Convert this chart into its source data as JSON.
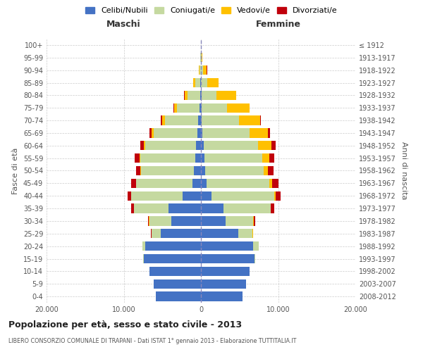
{
  "age_groups": [
    "0-4",
    "5-9",
    "10-14",
    "15-19",
    "20-24",
    "25-29",
    "30-34",
    "35-39",
    "40-44",
    "45-49",
    "50-54",
    "55-59",
    "60-64",
    "65-69",
    "70-74",
    "75-79",
    "80-84",
    "85-89",
    "90-94",
    "95-99",
    "100+"
  ],
  "birth_years": [
    "2008-2012",
    "2003-2007",
    "1998-2002",
    "1993-1997",
    "1988-1992",
    "1983-1987",
    "1978-1982",
    "1973-1977",
    "1968-1972",
    "1963-1967",
    "1958-1962",
    "1953-1957",
    "1948-1952",
    "1943-1947",
    "1938-1942",
    "1933-1937",
    "1928-1932",
    "1923-1927",
    "1918-1922",
    "1913-1917",
    "≤ 1912"
  ],
  "males": {
    "celibi": [
      5800,
      6100,
      6700,
      7400,
      7200,
      5200,
      3800,
      4200,
      2400,
      1100,
      900,
      750,
      600,
      500,
      350,
      220,
      120,
      60,
      30,
      20,
      10
    ],
    "coniugati": [
      2,
      3,
      10,
      60,
      380,
      1200,
      2900,
      4500,
      6600,
      7300,
      6900,
      7100,
      6600,
      5600,
      4300,
      2900,
      1600,
      650,
      180,
      40,
      15
    ],
    "vedovi": [
      0,
      0,
      1,
      2,
      5,
      8,
      15,
      20,
      25,
      40,
      70,
      120,
      200,
      270,
      330,
      380,
      420,
      310,
      100,
      20,
      5
    ],
    "divorziati": [
      0,
      0,
      1,
      2,
      10,
      40,
      120,
      280,
      480,
      580,
      500,
      580,
      480,
      330,
      200,
      80,
      30,
      15,
      5,
      3,
      1
    ]
  },
  "females": {
    "nubili": [
      5400,
      5800,
      6300,
      6900,
      6800,
      4800,
      3200,
      2900,
      1400,
      750,
      550,
      420,
      330,
      200,
      130,
      80,
      50,
      30,
      15,
      10,
      8
    ],
    "coniugate": [
      2,
      3,
      10,
      100,
      650,
      1900,
      3600,
      6100,
      8100,
      8100,
      7600,
      7500,
      7100,
      6100,
      4800,
      3300,
      2000,
      800,
      280,
      70,
      15
    ],
    "vedove": [
      0,
      0,
      1,
      2,
      8,
      15,
      40,
      80,
      180,
      360,
      560,
      900,
      1700,
      2400,
      2700,
      2900,
      2500,
      1450,
      480,
      90,
      10
    ],
    "divorziate": [
      0,
      0,
      1,
      2,
      15,
      60,
      180,
      380,
      680,
      800,
      700,
      680,
      580,
      230,
      130,
      60,
      25,
      10,
      5,
      2,
      1
    ]
  },
  "colors": {
    "celibi": "#4472c4",
    "coniugati": "#c5d9a0",
    "vedovi": "#ffc000",
    "divorziati": "#c0000b"
  },
  "title": "Popolazione per età, sesso e stato civile - 2013",
  "subtitle": "LIBERO CONSORZIO COMUNALE DI TRAPANI - Dati ISTAT 1° gennaio 2013 - Elaborazione TUTTITALIA.IT",
  "xlabel_left": "Maschi",
  "xlabel_right": "Femmine",
  "ylabel_left": "Fasce di età",
  "ylabel_right": "Anni di nascita",
  "xlim": 20000,
  "xticks": [
    -20000,
    -10000,
    0,
    10000,
    20000
  ],
  "xticklabels": [
    "20.000",
    "10.000",
    "0",
    "10.000",
    "20.000"
  ],
  "legend_labels": [
    "Celibi/Nubili",
    "Coniugati/e",
    "Vedovi/e",
    "Divorziati/e"
  ],
  "bg_color": "#ffffff",
  "grid_color": "#cccccc",
  "bar_height": 0.75
}
